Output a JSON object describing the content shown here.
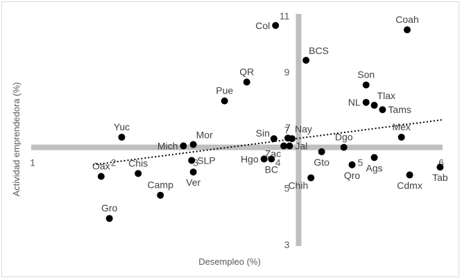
{
  "chart_data": {
    "type": "scatter",
    "title": "",
    "xlabel": "Desempleo (%)",
    "ylabel": "Actividad emprendedora (%)",
    "xlim": [
      1,
      6
    ],
    "ylim": [
      3,
      11
    ],
    "x_ticks": [
      1,
      2,
      3,
      4,
      5,
      6
    ],
    "y_ticks": [
      3,
      5,
      7,
      9,
      11
    ],
    "crosshair": {
      "x": 4.25,
      "y": 6.4
    },
    "trendline": {
      "style": "dotted",
      "x": [
        1.75,
        6.0
      ],
      "y": [
        5.8,
        7.35
      ]
    },
    "colors": {
      "points": "#000000",
      "crosshair": "#bfbfbf",
      "trend": "#000000",
      "text": "#404040"
    },
    "points": [
      {
        "label": "Col",
        "x": 3.97,
        "y": 10.6,
        "anchor": "left"
      },
      {
        "label": "Coah",
        "x": 5.57,
        "y": 10.45,
        "anchor": "above"
      },
      {
        "label": "BCS",
        "x": 4.34,
        "y": 9.4,
        "anchor": "right-above"
      },
      {
        "label": "QR",
        "x": 3.62,
        "y": 8.65,
        "anchor": "above"
      },
      {
        "label": "Son",
        "x": 5.07,
        "y": 8.55,
        "anchor": "above"
      },
      {
        "label": "Pue",
        "x": 3.35,
        "y": 8.0,
        "anchor": "above"
      },
      {
        "label": "NL",
        "x": 5.07,
        "y": 7.95,
        "anchor": "left"
      },
      {
        "label": "Tlax",
        "x": 5.17,
        "y": 7.85,
        "anchor": "right-above"
      },
      {
        "label": "Tams",
        "x": 5.27,
        "y": 7.7,
        "anchor": "right"
      },
      {
        "label": "Méx",
        "x": 5.5,
        "y": 6.75,
        "anchor": "above"
      },
      {
        "label": "Yuc",
        "x": 2.1,
        "y": 6.75,
        "anchor": "above"
      },
      {
        "label": "Mich",
        "x": 2.85,
        "y": 6.45,
        "anchor": "left"
      },
      {
        "label": "Mor",
        "x": 2.97,
        "y": 6.5,
        "anchor": "right-above"
      },
      {
        "label": "Sin",
        "x": 3.95,
        "y": 6.7,
        "anchor": "left-above"
      },
      {
        "label": "7",
        "x": 4.12,
        "y": 6.72,
        "anchor": "above"
      },
      {
        "label": "Nay",
        "x": 4.17,
        "y": 6.7,
        "anchor": "right-above"
      },
      {
        "label": "Dgo",
        "x": 4.8,
        "y": 6.4,
        "anchor": "above"
      },
      {
        "label": "Zac",
        "x": 4.07,
        "y": 6.45,
        "anchor": "left-below"
      },
      {
        "label": "Jal",
        "x": 4.14,
        "y": 6.45,
        "anchor": "right"
      },
      {
        "label": "Gto",
        "x": 4.53,
        "y": 6.25,
        "anchor": "below"
      },
      {
        "label": "SLP",
        "x": 2.95,
        "y": 5.95,
        "anchor": "right"
      },
      {
        "label": "Hgo",
        "x": 3.83,
        "y": 6.0,
        "anchor": "left"
      },
      {
        "label": "BC",
        "x": 3.92,
        "y": 6.0,
        "anchor": "below"
      },
      {
        "label": "Ags",
        "x": 5.17,
        "y": 6.05,
        "anchor": "below"
      },
      {
        "label": "Qro",
        "x": 4.9,
        "y": 5.8,
        "anchor": "below"
      },
      {
        "label": "Tab",
        "x": 5.97,
        "y": 5.72,
        "anchor": "below"
      },
      {
        "label": "Cdmx",
        "x": 5.6,
        "y": 5.45,
        "anchor": "below"
      },
      {
        "label": "Chih",
        "x": 4.4,
        "y": 5.35,
        "anchor": "left-below"
      },
      {
        "label": "Oax",
        "x": 1.85,
        "y": 5.4,
        "anchor": "above"
      },
      {
        "label": "Chis",
        "x": 2.3,
        "y": 5.5,
        "anchor": "above"
      },
      {
        "label": "Ver",
        "x": 2.97,
        "y": 5.55,
        "anchor": "below"
      },
      {
        "label": "Camp",
        "x": 2.57,
        "y": 4.75,
        "anchor": "above"
      },
      {
        "label": "Gro",
        "x": 1.95,
        "y": 3.95,
        "anchor": "above"
      }
    ]
  }
}
